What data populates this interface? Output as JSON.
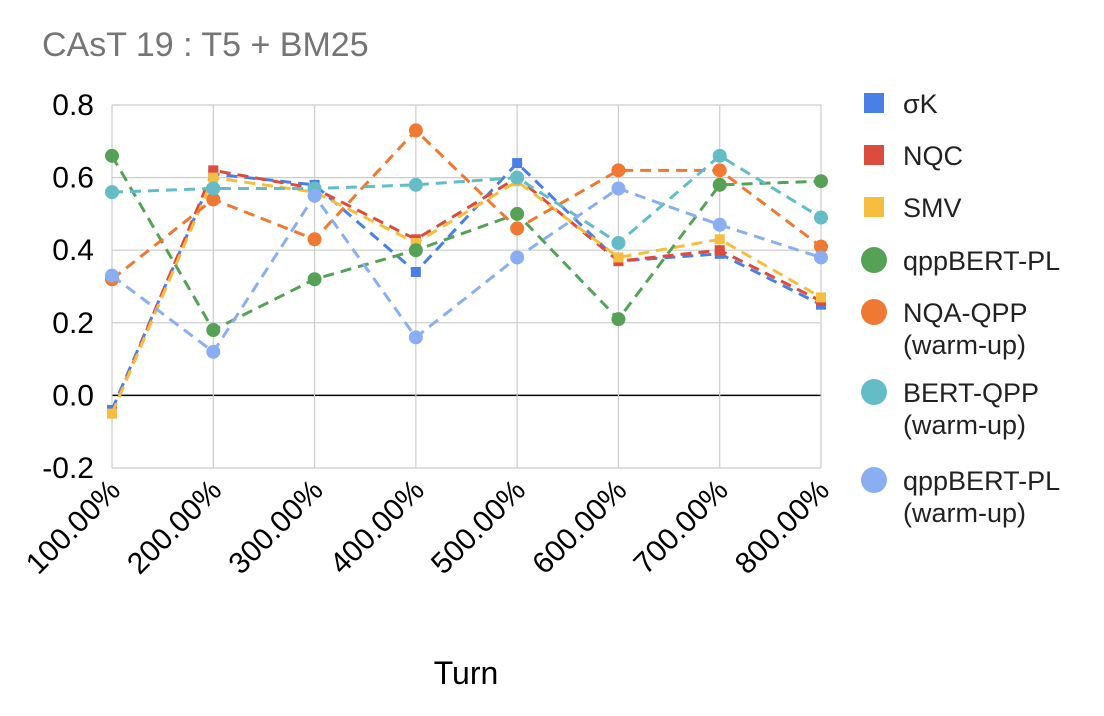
{
  "chart_data": {
    "type": "line",
    "title": "CAsT 19 : T5 + BM25",
    "xlabel": "Turn",
    "ylabel": "",
    "categories": [
      "100.00%",
      "200.00%",
      "300.00%",
      "400.00%",
      "500.00%",
      "600.00%",
      "700.00%",
      "800.00%"
    ],
    "yticks": [
      "-0.2",
      "0.0",
      "0.2",
      "0.4",
      "0.6",
      "0.8"
    ],
    "ylim": [
      -0.2,
      0.8
    ],
    "grid": true,
    "legend_position": "right",
    "series": [
      {
        "name": "σK",
        "color": "#4a7fe5",
        "marker": "square",
        "values": [
          -0.04,
          0.61,
          0.58,
          0.34,
          0.64,
          0.37,
          0.39,
          0.25
        ]
      },
      {
        "name": "NQC",
        "color": "#dc4c3c",
        "marker": "square",
        "values": [
          -0.05,
          0.62,
          0.57,
          0.43,
          0.6,
          0.37,
          0.4,
          0.26
        ]
      },
      {
        "name": "SMV",
        "color": "#f6bd3f",
        "marker": "square",
        "values": [
          -0.05,
          0.6,
          0.56,
          0.42,
          0.59,
          0.38,
          0.43,
          0.27
        ]
      },
      {
        "name": "qppBERT-PL",
        "color": "#55a257",
        "marker": "circle",
        "values": [
          0.66,
          0.18,
          0.32,
          0.4,
          0.5,
          0.21,
          0.58,
          0.59
        ]
      },
      {
        "name": "NQA-QPP (warm-up)",
        "color": "#ef7833",
        "marker": "circle",
        "values": [
          0.32,
          0.54,
          0.43,
          0.73,
          0.46,
          0.62,
          0.62,
          0.41
        ]
      },
      {
        "name": "BERT-QPP (warm-up)",
        "color": "#63bcc6",
        "marker": "circle",
        "values": [
          0.56,
          0.57,
          0.57,
          0.58,
          0.6,
          0.42,
          0.66,
          0.49
        ]
      },
      {
        "name": "qppBERT-PL (warm-up)",
        "color": "#8aaef2",
        "marker": "circle",
        "values": [
          0.33,
          0.12,
          0.55,
          0.16,
          0.38,
          0.57,
          0.47,
          0.38
        ]
      }
    ]
  },
  "legend": [
    {
      "lines": [
        "σK"
      ]
    },
    {
      "lines": [
        "NQC"
      ]
    },
    {
      "lines": [
        "SMV"
      ]
    },
    {
      "lines": [
        "qppBERT-PL"
      ]
    },
    {
      "lines": [
        "NQA-QPP",
        "(warm-up)"
      ]
    },
    {
      "lines": [
        "BERT-QPP",
        "(warm-up)"
      ]
    },
    {
      "lines": [
        "qppBERT-PL",
        "(warm-up)"
      ]
    }
  ]
}
